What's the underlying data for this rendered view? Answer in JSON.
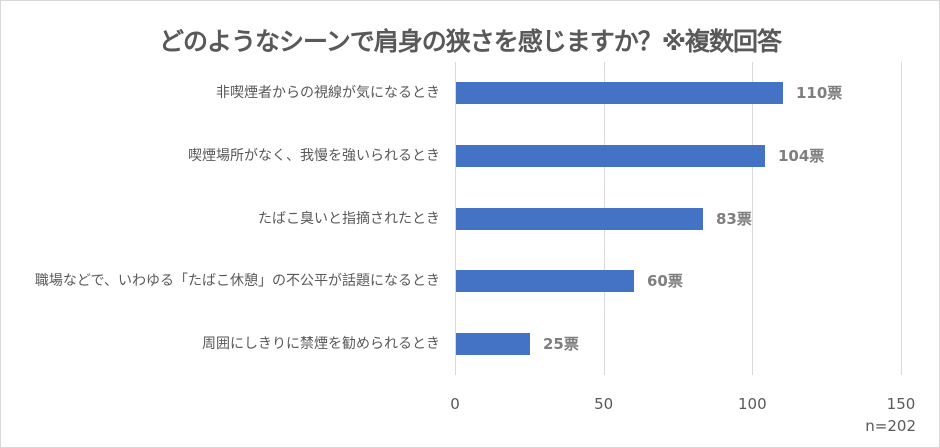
{
  "title": "どのようなシーンで肩身の狭さを感じますか？※複数回答",
  "chart_data": {
    "type": "bar",
    "orientation": "horizontal",
    "title": "どのようなシーンで肩身の狭さを感じますか？※複数回答",
    "categories": [
      "非喫煙者からの視線が気になるとき",
      "喫煙場所がなく、我慢を強いられるとき",
      "たばこ臭いと指摘されたとき",
      "職場などで、いわゆる「たばこ休憩」の不公平が話題になるとき",
      "周囲にしきりに禁煙を勧められるとき"
    ],
    "values": [
      110,
      104,
      83,
      60,
      25
    ],
    "data_labels": [
      "110票",
      "104票",
      "83票",
      "60票",
      "25票"
    ],
    "xlabel": "",
    "ylabel": "",
    "xlim": [
      0,
      150
    ],
    "x_ticks": [
      "0",
      "50",
      "100",
      "150"
    ],
    "grid": true,
    "legend": null,
    "bar_color": "#4472c4",
    "annotation": "n=202"
  },
  "axis": {
    "ticks": [
      "0",
      "50",
      "100",
      "150"
    ]
  },
  "note": "n=202"
}
